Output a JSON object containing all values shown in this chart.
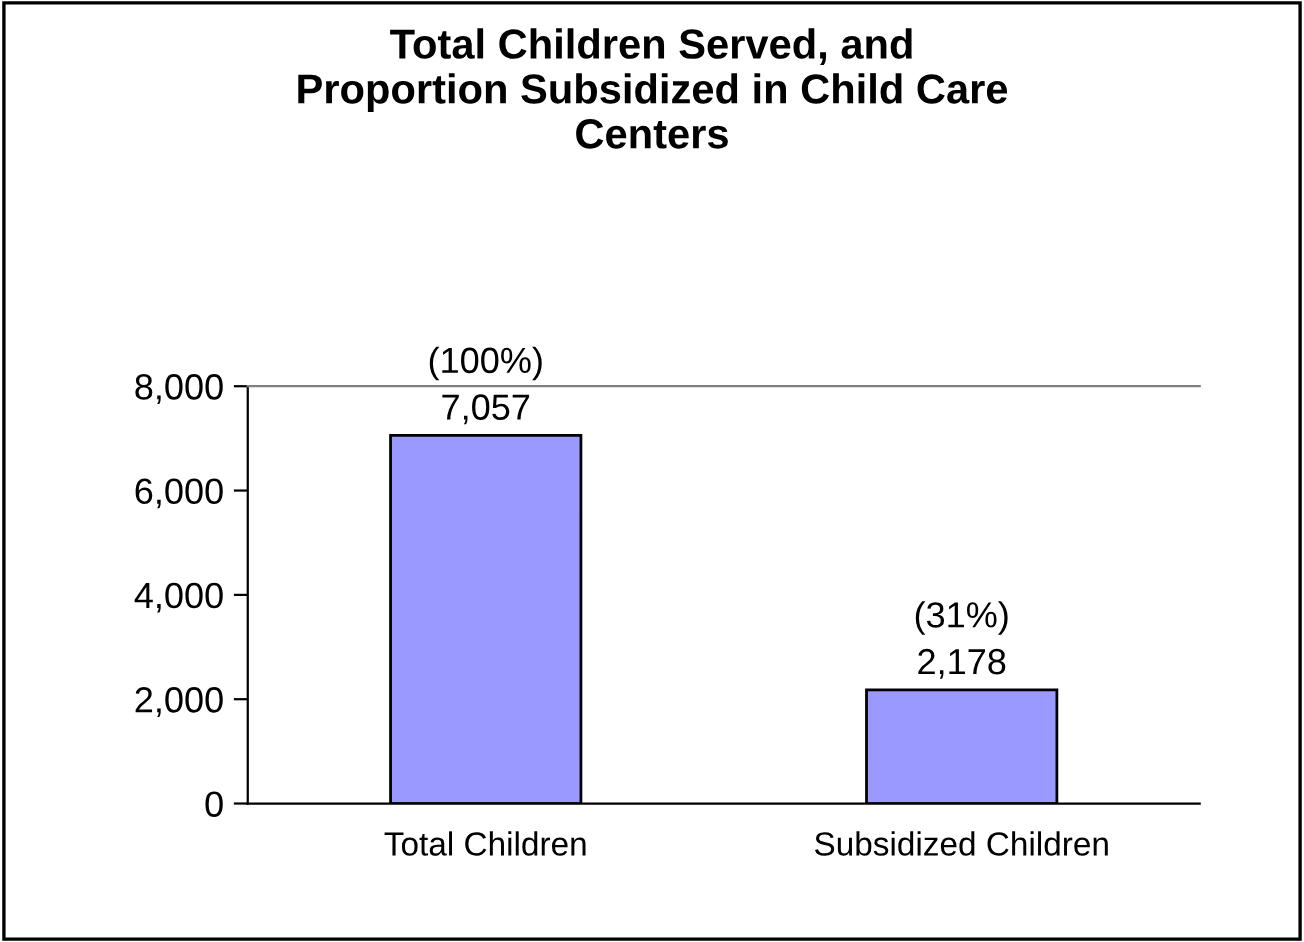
{
  "chart_data": {
    "type": "bar",
    "title": "Total Children Served, and\nProportion Subsidized in Child Care\nCenters",
    "categories": [
      "Total Children",
      "Subsidized Children"
    ],
    "values": [
      7057,
      2178
    ],
    "color": "#9999ff",
    "value_labels": [
      "(100%)\n7,057",
      "(31%)\n2,178"
    ],
    "ylim": [
      0,
      8000
    ],
    "yticks": [
      {
        "value": 0,
        "label": "0"
      },
      {
        "value": 2000,
        "label": "2,000"
      },
      {
        "value": 4000,
        "label": "4,000"
      },
      {
        "value": 6000,
        "label": "6,000"
      },
      {
        "value": 8000,
        "label": "8,000"
      }
    ],
    "grid": false,
    "legend": false
  }
}
